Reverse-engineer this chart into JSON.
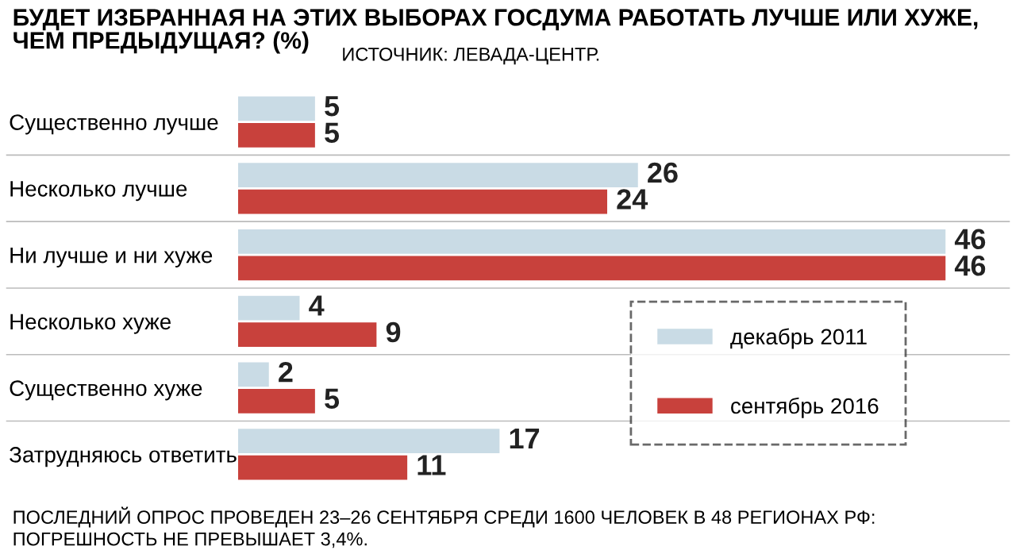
{
  "chart_data": {
    "type": "bar",
    "orientation": "horizontal",
    "title": "БУДЕТ ИЗБРАННАЯ НА ЭТИХ ВЫБОРАХ ГОСДУМА РАБОТАТЬ ЛУЧШЕ ИЛИ ХУЖЕ,\nЧЕМ ПРЕДЫДУЩАЯ? (%)",
    "subtitle": "ИСТОЧНИК: ЛЕВАДА-ЦЕНТР.",
    "categories": [
      "Существенно лучше",
      "Несколько лучше",
      "Ни лучше и ни хуже",
      "Несколько хуже",
      "Существенно хуже",
      "Затрудняюсь ответить"
    ],
    "series": [
      {
        "name": "декабрь 2011",
        "color": "#c9dbe5",
        "values": [
          5,
          26,
          46,
          4,
          2,
          17
        ]
      },
      {
        "name": "сентябрь 2016",
        "color": "#c8413c",
        "values": [
          5,
          24,
          46,
          9,
          5,
          11
        ]
      }
    ],
    "data_labels": true,
    "legend": "bottom right",
    "grid": false,
    "annotations": [
      "ПОСЛЕДНИЙ ОПРОС ПРОВЕДЕН 23–26 СЕНТЯБРЯ СРЕДИ 1600 ЧЕЛОВЕК В 48 РЕГИОНАХ РФ:",
      "ПОГРЕШНОСТЬ НЕ ПРЕВЫШАЕТ 3,4%."
    ]
  }
}
